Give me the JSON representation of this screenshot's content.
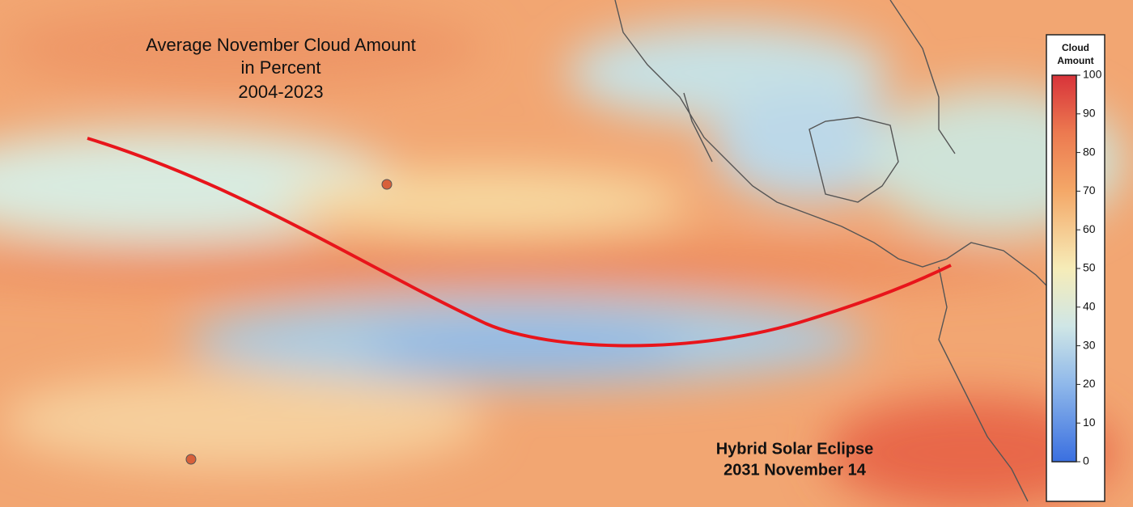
{
  "title": [
    "Average November Cloud Amount",
    "in Percent",
    "2004-2023"
  ],
  "eclipse_label": [
    "Hybrid Solar Eclipse",
    "2031 November 14"
  ],
  "legend": {
    "title": [
      "Cloud",
      "Amount"
    ],
    "range": [
      0,
      100
    ],
    "ticks": [
      0,
      10,
      20,
      30,
      40,
      50,
      60,
      70,
      80,
      90,
      100
    ]
  }
}
